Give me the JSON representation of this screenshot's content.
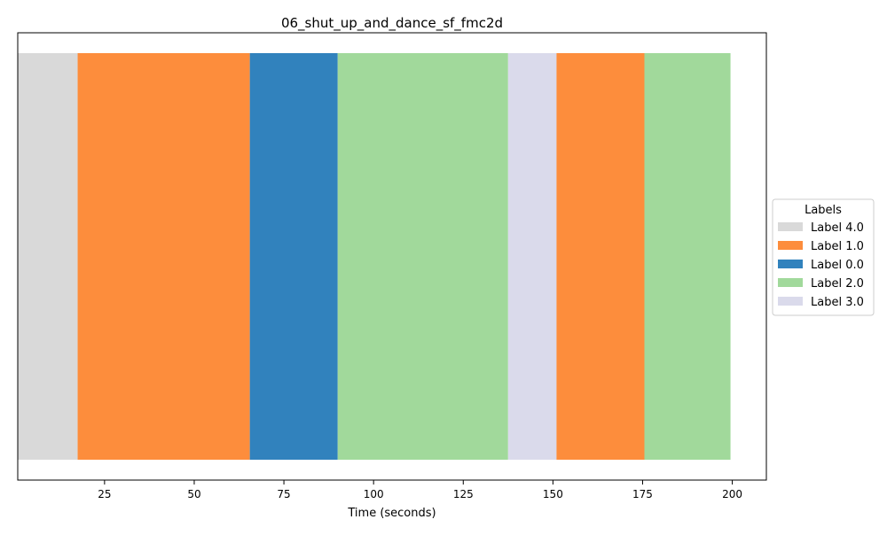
{
  "chart_data": {
    "type": "bar",
    "orientation": "horizontal-timeline",
    "title": "06_shut_up_and_dance_sf_fmc2d",
    "xlabel": "Time (seconds)",
    "ylabel": "",
    "xlim": [
      0.8,
      209.5
    ],
    "xticks": [
      25,
      50,
      75,
      100,
      125,
      150,
      175,
      200
    ],
    "grid": false,
    "legend": {
      "title": "Labels",
      "placement": "center-right-outside",
      "entries": [
        {
          "label": "Label 4.0",
          "color": "#d9d9d9"
        },
        {
          "label": "Label 1.0",
          "color": "#fd8d3c"
        },
        {
          "label": "Label 0.0",
          "color": "#3182bd"
        },
        {
          "label": "Label 2.0",
          "color": "#a1d99b"
        },
        {
          "label": "Label 3.0",
          "color": "#dadaeb"
        }
      ]
    },
    "segments": [
      {
        "label": "Label 4.0",
        "start": 0.8,
        "end": 17.5
      },
      {
        "label": "Label 1.0",
        "start": 17.5,
        "end": 65.5
      },
      {
        "label": "Label 0.0",
        "start": 65.5,
        "end": 90.0
      },
      {
        "label": "Label 2.0",
        "start": 90.0,
        "end": 137.5
      },
      {
        "label": "Label 3.0",
        "start": 137.5,
        "end": 151.0
      },
      {
        "label": "Label 1.0",
        "start": 151.0,
        "end": 175.5
      },
      {
        "label": "Label 2.0",
        "start": 175.5,
        "end": 199.5
      }
    ]
  }
}
